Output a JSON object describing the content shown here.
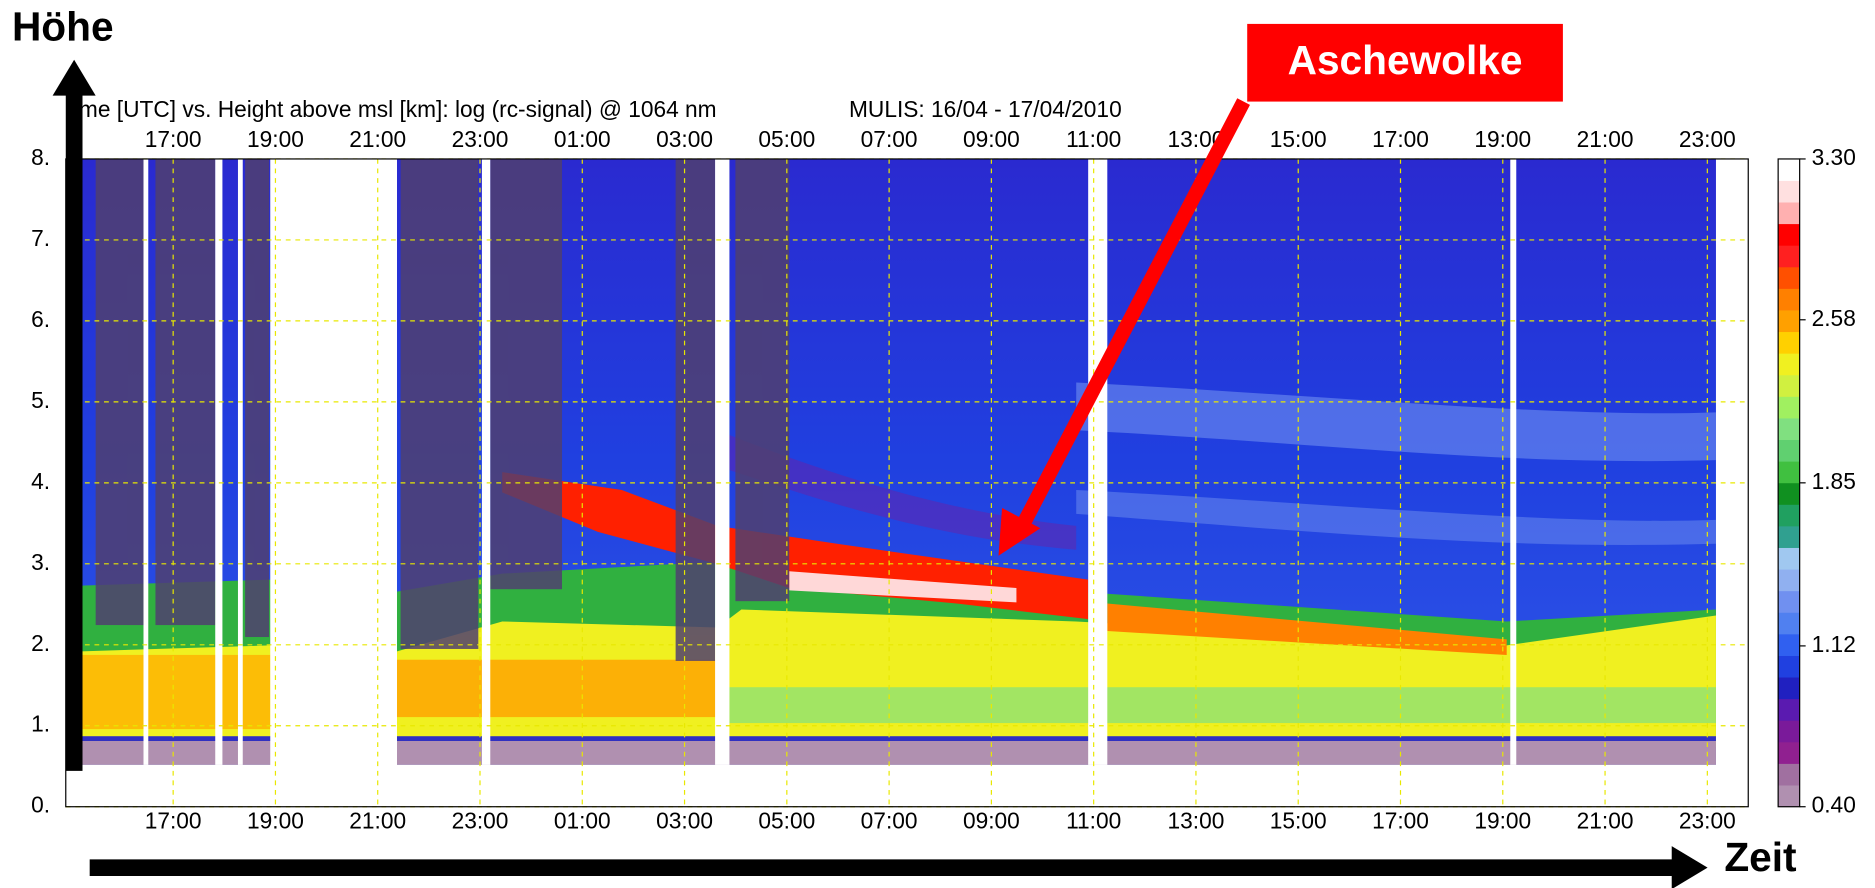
{
  "chart_data": {
    "type": "heatmap",
    "title": "me [UTC] vs. Height above msl [km]: log (rc-signal) @ 1064 nm",
    "subtitle": "MULIS: 16/04 - 17/04/2010",
    "ylabel": "Höhe",
    "xlabel": "Zeit",
    "annotation": "Aschewolke",
    "xlim": [
      14.9,
      47.8
    ],
    "xticks": [
      {
        "value": 17,
        "label": "17:00"
      },
      {
        "value": 19,
        "label": "19:00"
      },
      {
        "value": 21,
        "label": "21:00"
      },
      {
        "value": 23,
        "label": "23:00"
      },
      {
        "value": 25,
        "label": "01:00"
      },
      {
        "value": 27,
        "label": "03:00"
      },
      {
        "value": 29,
        "label": "05:00"
      },
      {
        "value": 31,
        "label": "07:00"
      },
      {
        "value": 33,
        "label": "09:00"
      },
      {
        "value": 35,
        "label": "11:00"
      },
      {
        "value": 37,
        "label": "13:00"
      },
      {
        "value": 39,
        "label": "15:00"
      },
      {
        "value": 41,
        "label": "17:00"
      },
      {
        "value": 43,
        "label": "19:00"
      },
      {
        "value": 45,
        "label": "21:00"
      },
      {
        "value": 47,
        "label": "23:00"
      }
    ],
    "ylim": [
      0,
      8
    ],
    "yticks": [
      {
        "value": 0,
        "label": "0."
      },
      {
        "value": 1,
        "label": "1."
      },
      {
        "value": 2,
        "label": "2."
      },
      {
        "value": 3,
        "label": "3."
      },
      {
        "value": 4,
        "label": "4."
      },
      {
        "value": 5,
        "label": "5."
      },
      {
        "value": 6,
        "label": "6."
      },
      {
        "value": 7,
        "label": "7."
      },
      {
        "value": 8,
        "label": "8."
      }
    ],
    "grid": true,
    "colorbar": {
      "lim": [
        0.4,
        3.3
      ],
      "ticks": [
        {
          "value": 0.4,
          "label": "0.40"
        },
        1.12,
        1.85,
        2.58,
        {
          "value": 3.3,
          "label": "3.30"
        }
      ],
      "colors": [
        "#b090b0",
        "#a070a0",
        "#902090",
        "#7a1a9a",
        "#5a1ab0",
        "#2020c0",
        "#2040e0",
        "#3060f0",
        "#5080f0",
        "#7090f0",
        "#90b0f0",
        "#a0c8f0",
        "#30a090",
        "#20a060",
        "#109020",
        "#40c040",
        "#60d070",
        "#80e080",
        "#a0f060",
        "#d0f040",
        "#f0f020",
        "#ffd000",
        "#ffa000",
        "#ff8000",
        "#ff5000",
        "#ff2020",
        "#ff0000",
        "#ffb0b0",
        "#ffe0e0",
        "#ffffff"
      ]
    }
  }
}
